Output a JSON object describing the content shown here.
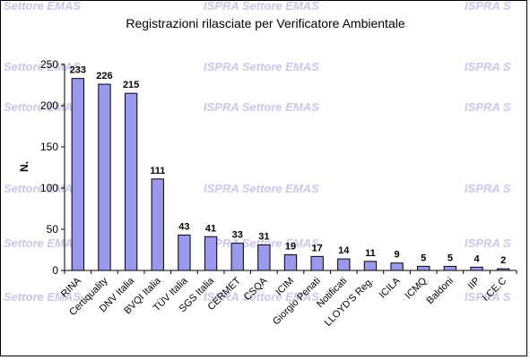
{
  "watermark": {
    "text_partial_left": "Settore EMAS",
    "text_full": "ISPRA Settore EMAS",
    "text_partial_right": "ISPRA S",
    "color": "#c8c8ee"
  },
  "chart_data": {
    "type": "bar",
    "title": "Registrazioni rilasciate per Verificatore Ambientale",
    "xlabel": "",
    "ylabel": "N.",
    "ylim": [
      0,
      250
    ],
    "yticks": [
      0,
      50,
      100,
      150,
      200,
      250
    ],
    "grid": false,
    "legend": "none",
    "bar_color": "#9999ee",
    "bar_edge": "#000000",
    "categories": [
      "RINA",
      "Certiquality",
      "DNV Italia",
      "BVQI Italia",
      "TÜV Italia",
      "SGS Italia",
      "CERMET",
      "CSQA",
      "ICIM",
      "Giorgio Penati",
      "Notificati",
      "LLOYD'S Reg.",
      "ICILA",
      "ICMQ",
      "Baldoni",
      "IIP",
      "I.CE.C"
    ],
    "values": [
      233,
      226,
      215,
      111,
      43,
      41,
      33,
      31,
      19,
      17,
      14,
      11,
      9,
      5,
      5,
      4,
      2
    ]
  }
}
